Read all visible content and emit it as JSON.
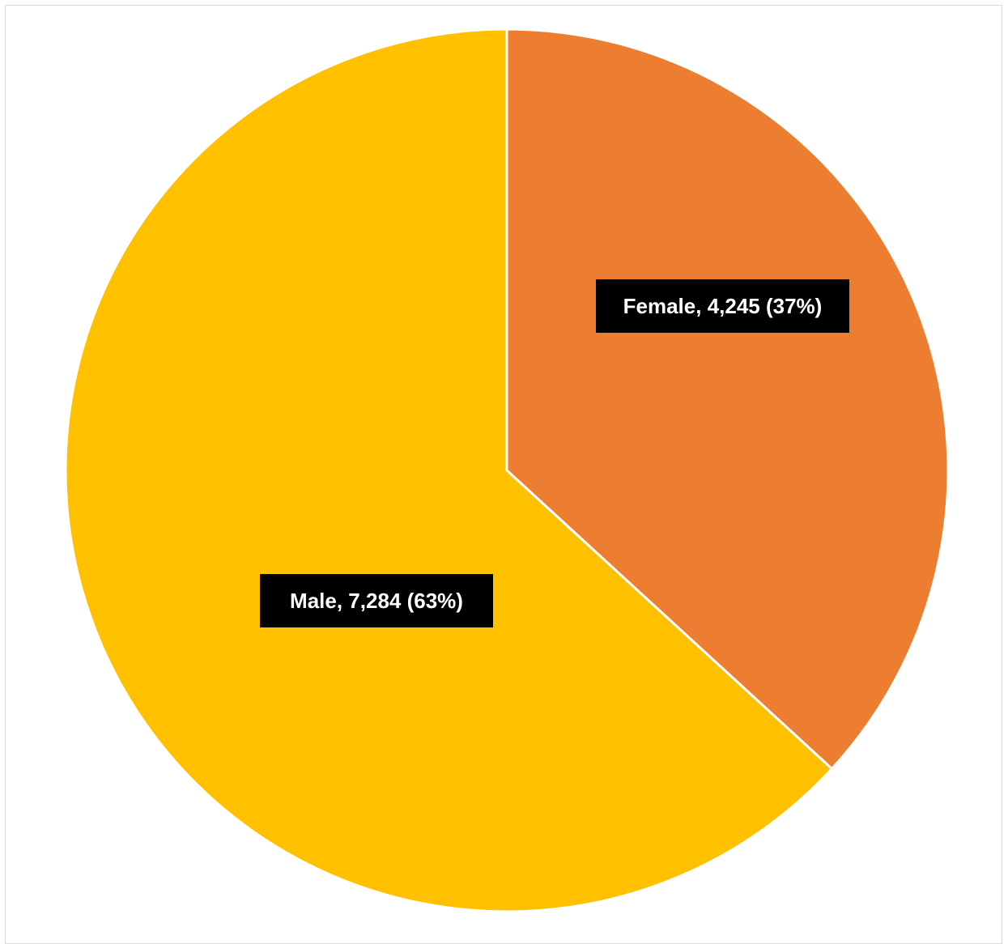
{
  "chart_data": {
    "type": "pie",
    "categories": [
      "Female",
      "Male"
    ],
    "values": [
      4245,
      7284
    ],
    "percentages": [
      37,
      63
    ],
    "colors": [
      "#ED7D31",
      "#FFC000"
    ],
    "data_labels": [
      "Female, 4,245 (37%)",
      "Male, 7,284 (63%)"
    ],
    "start_angle_deg": 0,
    "direction": "clockwise",
    "slice_border_color": "#FFFFFF",
    "label_background": "#000000",
    "label_text_color": "#FFFFFF",
    "legend": "none",
    "title": ""
  }
}
